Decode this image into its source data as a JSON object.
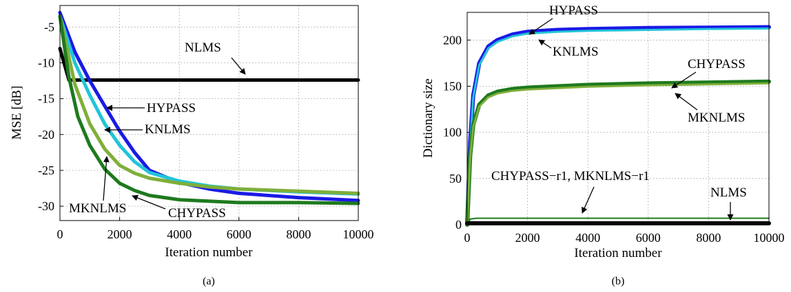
{
  "chart_data": [
    {
      "type": "line",
      "caption": "(a)",
      "xlabel": "Iteration number",
      "ylabel": "MSE [dB]",
      "xlim": [
        0,
        10000
      ],
      "ylim": [
        -32,
        -2
      ],
      "x_ticks": [
        0,
        2000,
        4000,
        6000,
        8000,
        10000
      ],
      "y_ticks": [
        -30,
        -25,
        -20,
        -15,
        -10,
        -5
      ],
      "grid": true,
      "series": [
        {
          "name": "NLMS",
          "color": "#000000",
          "x": [
            0,
            300,
            10000
          ],
          "y": [
            -8,
            -12.4,
            -12.4
          ]
        },
        {
          "name": "HYPASS",
          "color": "#1a1ae6",
          "x": [
            0,
            500,
            1000,
            1500,
            2000,
            2500,
            3000,
            4000,
            5000,
            6000,
            8000,
            10000
          ],
          "y": [
            -3,
            -8.5,
            -12.5,
            -16,
            -19.5,
            -22.5,
            -25,
            -26.7,
            -27.6,
            -28.2,
            -28.8,
            -29.2
          ]
        },
        {
          "name": "KNLMS",
          "color": "#22c4d8",
          "x": [
            0,
            500,
            1000,
            1500,
            2000,
            2500,
            3000,
            4000,
            5000,
            6000,
            8000,
            10000
          ],
          "y": [
            -3.5,
            -10,
            -14.5,
            -18.5,
            -21.5,
            -23.8,
            -25.3,
            -26.5,
            -27.2,
            -27.6,
            -28.0,
            -28.3
          ]
        },
        {
          "name": "MKNLMS",
          "color": "#7faf3a",
          "x": [
            0,
            500,
            1000,
            1500,
            2000,
            2500,
            3000,
            4000,
            5000,
            6000,
            8000,
            10000
          ],
          "y": [
            -3.5,
            -13,
            -18.5,
            -22,
            -24.3,
            -25.4,
            -26.1,
            -26.8,
            -27.3,
            -27.6,
            -27.9,
            -28.2
          ]
        },
        {
          "name": "CHYPASS",
          "color": "#1e7a1e",
          "x": [
            0,
            300,
            600,
            1000,
            1500,
            2000,
            2500,
            3000,
            4000,
            6000,
            8000,
            10000
          ],
          "y": [
            -3.5,
            -12,
            -17.5,
            -21.5,
            -24.8,
            -26.8,
            -27.8,
            -28.5,
            -29.1,
            -29.5,
            -29.5,
            -29.6
          ]
        }
      ],
      "annotations": [
        "NLMS",
        "HYPASS",
        "KNLMS",
        "MKNLMS",
        "CHYPASS"
      ]
    },
    {
      "type": "line",
      "caption": "(b)",
      "xlabel": "Iteration number",
      "ylabel": "Dictionary size",
      "xlim": [
        0,
        10000
      ],
      "ylim": [
        0,
        230
      ],
      "x_ticks": [
        0,
        2000,
        4000,
        6000,
        8000,
        10000
      ],
      "y_ticks": [
        0,
        50,
        100,
        150,
        200
      ],
      "grid": true,
      "series": [
        {
          "name": "HYPASS",
          "color": "#1a1ae6",
          "x": [
            0,
            100,
            200,
            400,
            700,
            1000,
            1500,
            2000,
            3000,
            4000,
            6000,
            8000,
            10000
          ],
          "y": [
            0,
            90,
            140,
            175,
            193,
            200,
            206,
            209,
            211,
            212,
            213,
            213.5,
            214
          ]
        },
        {
          "name": "KNLMS",
          "color": "#22c4d8",
          "x": [
            0,
            100,
            200,
            400,
            700,
            1000,
            1500,
            2000,
            3000,
            4000,
            6000,
            8000,
            10000
          ],
          "y": [
            0,
            88,
            138,
            173,
            191,
            198,
            204,
            207,
            209,
            210,
            211,
            212,
            212.5
          ]
        },
        {
          "name": "CHYPASS",
          "color": "#1e7a1e",
          "x": [
            0,
            100,
            200,
            400,
            700,
            1000,
            1500,
            2000,
            3000,
            4000,
            6000,
            8000,
            10000
          ],
          "y": [
            0,
            75,
            108,
            130,
            140,
            144,
            147,
            148.5,
            150,
            151.5,
            153,
            154,
            155
          ]
        },
        {
          "name": "MKNLMS",
          "color": "#7faf3a",
          "x": [
            0,
            100,
            200,
            400,
            700,
            1000,
            1500,
            2000,
            3000,
            4000,
            6000,
            8000,
            10000
          ],
          "y": [
            0,
            73,
            106,
            128,
            138,
            142,
            145,
            146.5,
            148,
            149.5,
            151,
            152,
            153
          ]
        },
        {
          "name": "CHYPASS−r1, MKNLMS−r1",
          "color": "#1e7a1e",
          "x": [
            0,
            100,
            300,
            10000
          ],
          "y": [
            0,
            6,
            7,
            7
          ]
        },
        {
          "name": "NLMS",
          "color": "#000000",
          "x": [
            0,
            10000
          ],
          "y": [
            1.5,
            1.5
          ]
        }
      ],
      "annotations": [
        "HYPASS",
        "KNLMS",
        "CHYPASS",
        "MKNLMS",
        "CHYPASS−r1, MKNLMS−r1",
        "NLMS"
      ]
    }
  ]
}
